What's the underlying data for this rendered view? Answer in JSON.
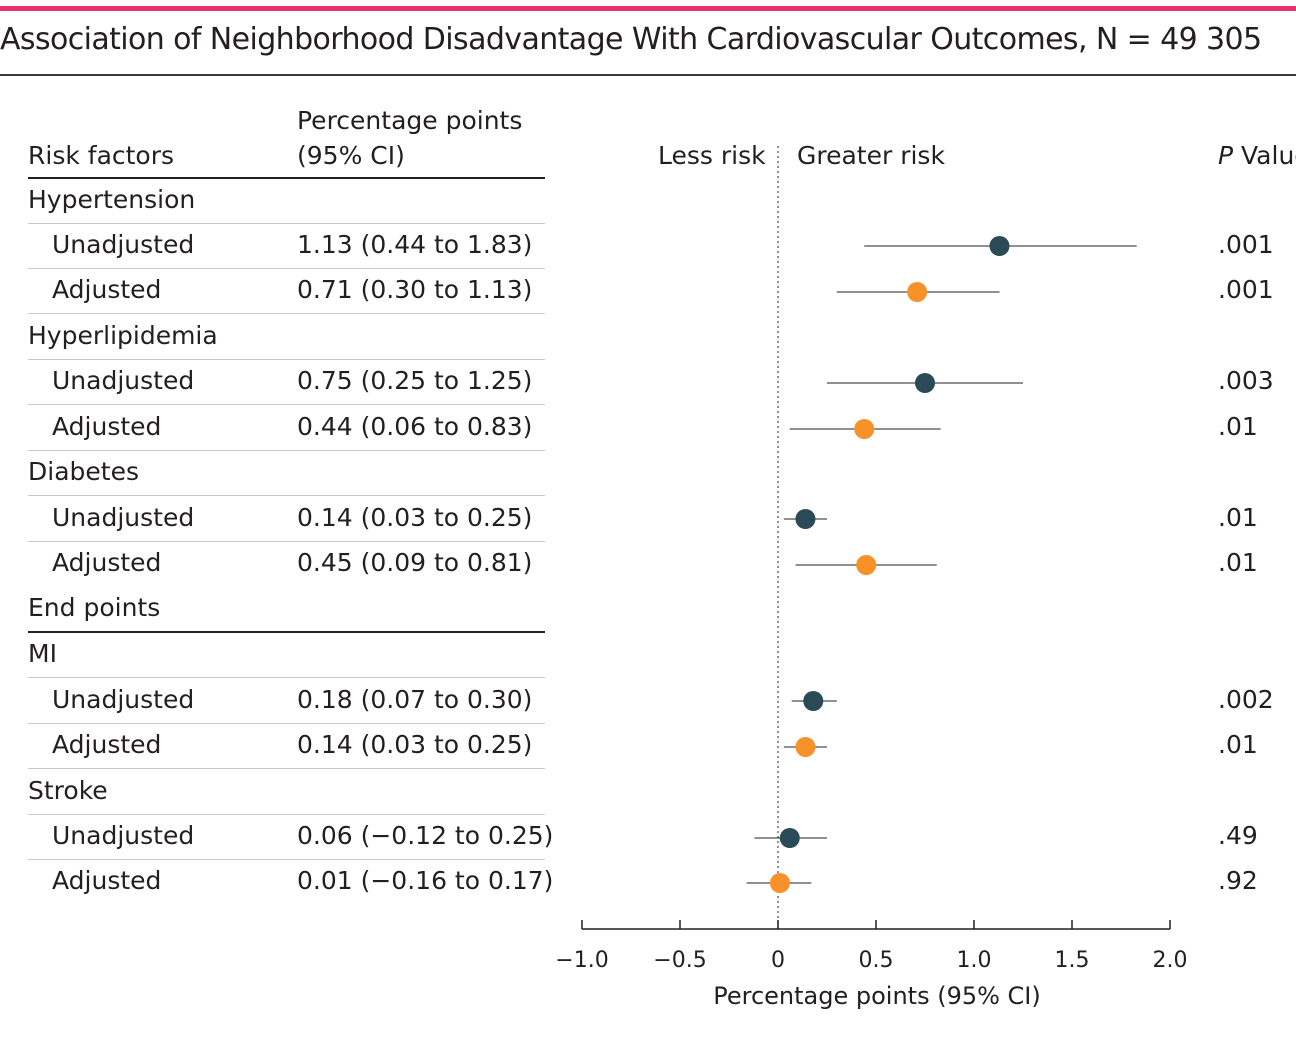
{
  "title": "Association of Neighborhood Disadvantage With Cardiovascular Outcomes, N = 49 305",
  "table": {
    "col_risk": "Risk factors",
    "col_pp_line1": "Percentage points",
    "col_pp_line2": "(95% CI)",
    "col_p_italic": "P",
    "col_p_rest": " Value",
    "less_risk": "Less risk",
    "greater_risk": "Greater risk",
    "end_points": "End points"
  },
  "colors": {
    "unadjusted": "#2a4a57",
    "adjusted": "#f7912a",
    "accent": "#e8336e"
  },
  "chart_data": {
    "type": "scatter",
    "subtype": "forest-plot",
    "title": "Association of Neighborhood Disadvantage With Cardiovascular Outcomes, N = 49 305",
    "xlabel": "Percentage points (95% CI)",
    "xlim": [
      -1.0,
      2.0
    ],
    "xticks": [
      -1.0,
      -0.5,
      0,
      0.5,
      1.0,
      1.5,
      2.0
    ],
    "xtick_labels": [
      "−1.0",
      "−0.5",
      "0",
      "0.5",
      "1.0",
      "1.5",
      "2.0"
    ],
    "reference_line": 0,
    "groups": [
      {
        "name": "Hypertension",
        "rows": [
          {
            "label": "Unadjusted",
            "estimate": 1.13,
            "lower": 0.44,
            "upper": 1.83,
            "ci_text": "1.13 (0.44 to 1.83)",
            "p": ".001",
            "series": "unadjusted"
          },
          {
            "label": "Adjusted",
            "estimate": 0.71,
            "lower": 0.3,
            "upper": 1.13,
            "ci_text": "0.71 (0.30 to 1.13)",
            "p": ".001",
            "series": "adjusted"
          }
        ]
      },
      {
        "name": "Hyperlipidemia",
        "rows": [
          {
            "label": "Unadjusted",
            "estimate": 0.75,
            "lower": 0.25,
            "upper": 1.25,
            "ci_text": "0.75 (0.25 to 1.25)",
            "p": ".003",
            "series": "unadjusted"
          },
          {
            "label": "Adjusted",
            "estimate": 0.44,
            "lower": 0.06,
            "upper": 0.83,
            "ci_text": "0.44 (0.06 to 0.83)",
            "p": ".01",
            "series": "adjusted"
          }
        ]
      },
      {
        "name": "Diabetes",
        "rows": [
          {
            "label": "Unadjusted",
            "estimate": 0.14,
            "lower": 0.03,
            "upper": 0.25,
            "ci_text": "0.14 (0.03 to 0.25)",
            "p": ".01",
            "series": "unadjusted"
          },
          {
            "label": "Adjusted",
            "estimate": 0.45,
            "lower": 0.09,
            "upper": 0.81,
            "ci_text": "0.45 (0.09 to 0.81)",
            "p": ".01",
            "series": "adjusted"
          }
        ]
      },
      {
        "name": "MI",
        "rows": [
          {
            "label": "Unadjusted",
            "estimate": 0.18,
            "lower": 0.07,
            "upper": 0.3,
            "ci_text": "0.18 (0.07 to 0.30)",
            "p": ".002",
            "series": "unadjusted"
          },
          {
            "label": "Adjusted",
            "estimate": 0.14,
            "lower": 0.03,
            "upper": 0.25,
            "ci_text": "0.14 (0.03 to 0.25)",
            "p": ".01",
            "series": "adjusted"
          }
        ]
      },
      {
        "name": "Stroke",
        "rows": [
          {
            "label": "Unadjusted",
            "estimate": 0.06,
            "lower": -0.12,
            "upper": 0.25,
            "ci_text": "0.06 (−0.12 to 0.25)",
            "p": ".49",
            "series": "unadjusted"
          },
          {
            "label": "Adjusted",
            "estimate": 0.01,
            "lower": -0.16,
            "upper": 0.17,
            "ci_text": "0.01 (−0.16 to 0.17)",
            "p": ".92",
            "series": "adjusted"
          }
        ]
      }
    ]
  }
}
